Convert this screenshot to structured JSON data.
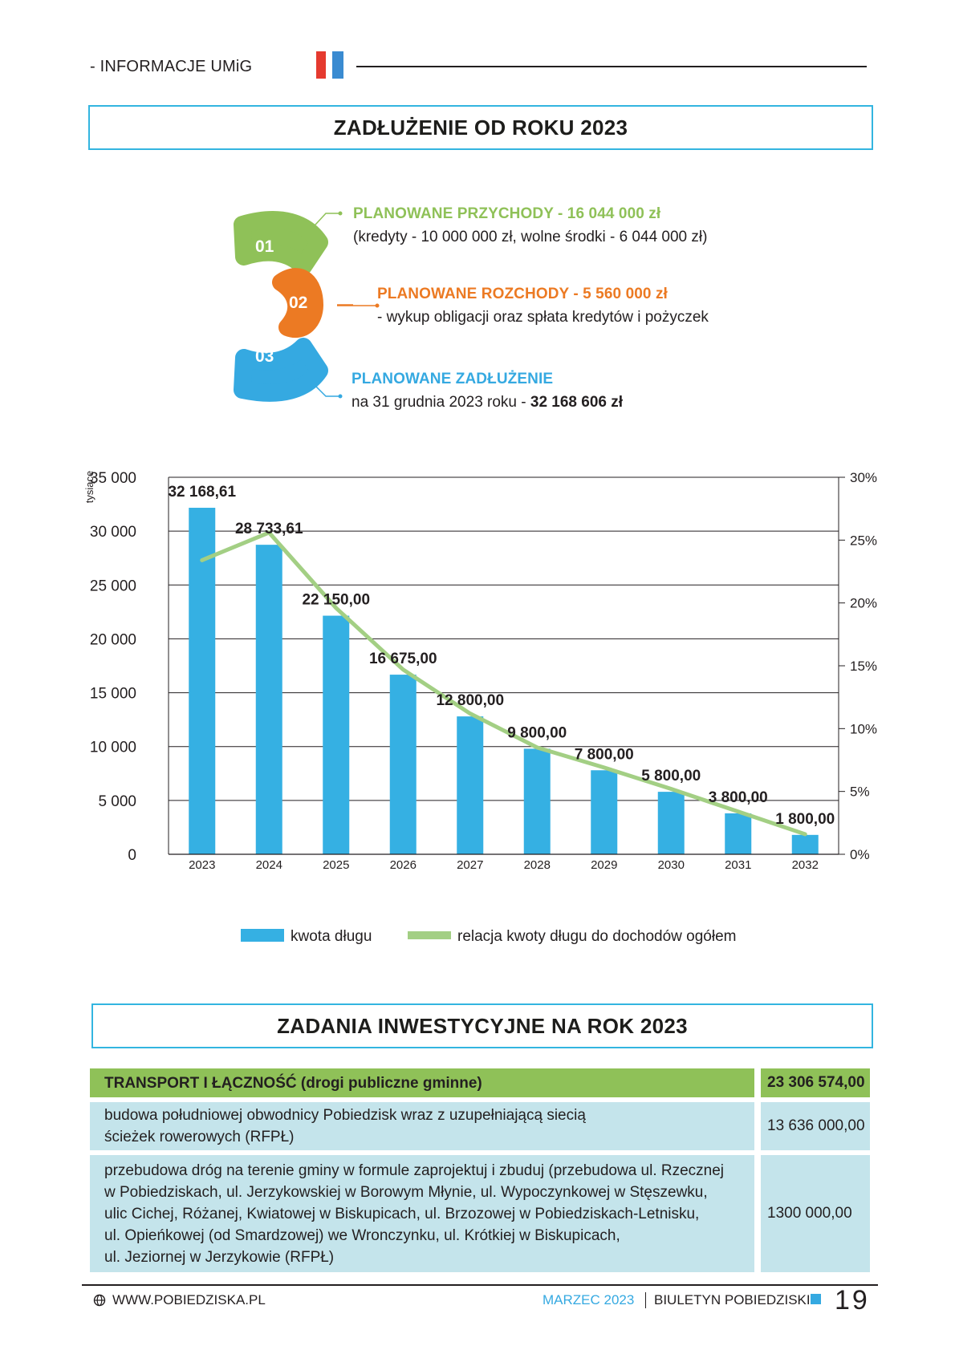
{
  "header": {
    "section": "- INFORMACJE UMiG"
  },
  "debt_title": "ZADŁUŻENIE OD ROKU 2023",
  "info": [
    {
      "number": "01",
      "title": "PLANOWANE PRZYCHODY - 16 044 000 zł",
      "text": "(kredyty - 10 000 000 zł, wolne środki - 6 044 000 zł)",
      "color": "#8fc158"
    },
    {
      "number": "02",
      "title": "PLANOWANE ROZCHODY - 5 560 000 zł",
      "text": "- wykup obligacji oraz spłata kredytów i pożyczek",
      "color": "#ec7a23"
    },
    {
      "number": "03",
      "title": "PLANOWANE ZADŁUŻENIE",
      "text": "na 31 grudnia 2023 roku - ",
      "text_bold": "32 168 606 zł",
      "color": "#35a9e1"
    }
  ],
  "chart_data": {
    "type": "bar",
    "categories": [
      "2023",
      "2024",
      "2025",
      "2026",
      "2027",
      "2028",
      "2029",
      "2030",
      "2031",
      "2032"
    ],
    "series": [
      {
        "name": "kwota długu",
        "type": "bar",
        "axis": "left",
        "color": "#35b0e3",
        "values": [
          32168.61,
          28733.61,
          22150.0,
          16675.0,
          12800.0,
          9800.0,
          7800.0,
          5800.0,
          3800.0,
          1800.0
        ],
        "labels": [
          "32 168,61",
          "28 733,61",
          "22 150,00",
          "16 675,00",
          "12 800,00",
          "9 800,00",
          "7 800,00",
          "5 800,00",
          "3 800,00",
          "1 800,00"
        ]
      },
      {
        "name": "relacja kwoty długu do dochodów ogółem",
        "type": "line",
        "axis": "right",
        "color": "#a3cf84",
        "values": [
          23.4,
          25.6,
          19.6,
          14.7,
          11.2,
          8.5,
          6.9,
          5.2,
          3.4,
          1.6
        ]
      }
    ],
    "ylabel": "tysiące",
    "ylim": [
      0,
      35000
    ],
    "y_ticks": [
      "0",
      "5 000",
      "10 000",
      "15 000",
      "20 000",
      "25 000",
      "30 000",
      "35 000"
    ],
    "y2lim": [
      0,
      30
    ],
    "y2_ticks": [
      "0%",
      "5%",
      "10%",
      "15%",
      "20%",
      "25%",
      "30%"
    ],
    "grid": true,
    "legend": "bottom"
  },
  "invest_title": "ZADANIA INWESTYCYJNE NA ROK 2023",
  "table": {
    "header": {
      "label": "TRANSPORT I ŁĄCZNOŚĆ (drogi publiczne gminne)",
      "amount": "23 306 574,00"
    },
    "rows": [
      {
        "lines": [
          "budowa południowej obwodnicy Pobiedzisk wraz z uzupełniającą siecią",
          "ścieżek rowerowych (RFPŁ)"
        ],
        "amount": "13 636 000,00"
      },
      {
        "lines": [
          "przebudowa dróg na terenie gminy w formule zaprojektuj i zbuduj (przebudowa ul. Rzecznej",
          "w Pobiedziskach, ul. Jerzykowskiej w Borowym Młynie, ul. Wypoczynkowej w Stęszewku,",
          "ulic Cichej, Różanej, Kwiatowej w Biskupicach, ul. Brzozowej w Pobiedziskach-Letnisku,",
          "ul. Opieńkowej (od Smardzowej) we Wronczynku, ul. Krótkiej w Biskupicach,",
          "ul. Jeziornej w Jerzykowie (RFPŁ)"
        ],
        "amount": "1300 000,00"
      }
    ]
  },
  "footer": {
    "website": "WWW.POBIEDZISKA.PL",
    "date": "MARZEC 2023",
    "publication": "BIULETYN POBIEDZISKI",
    "page": "19"
  }
}
